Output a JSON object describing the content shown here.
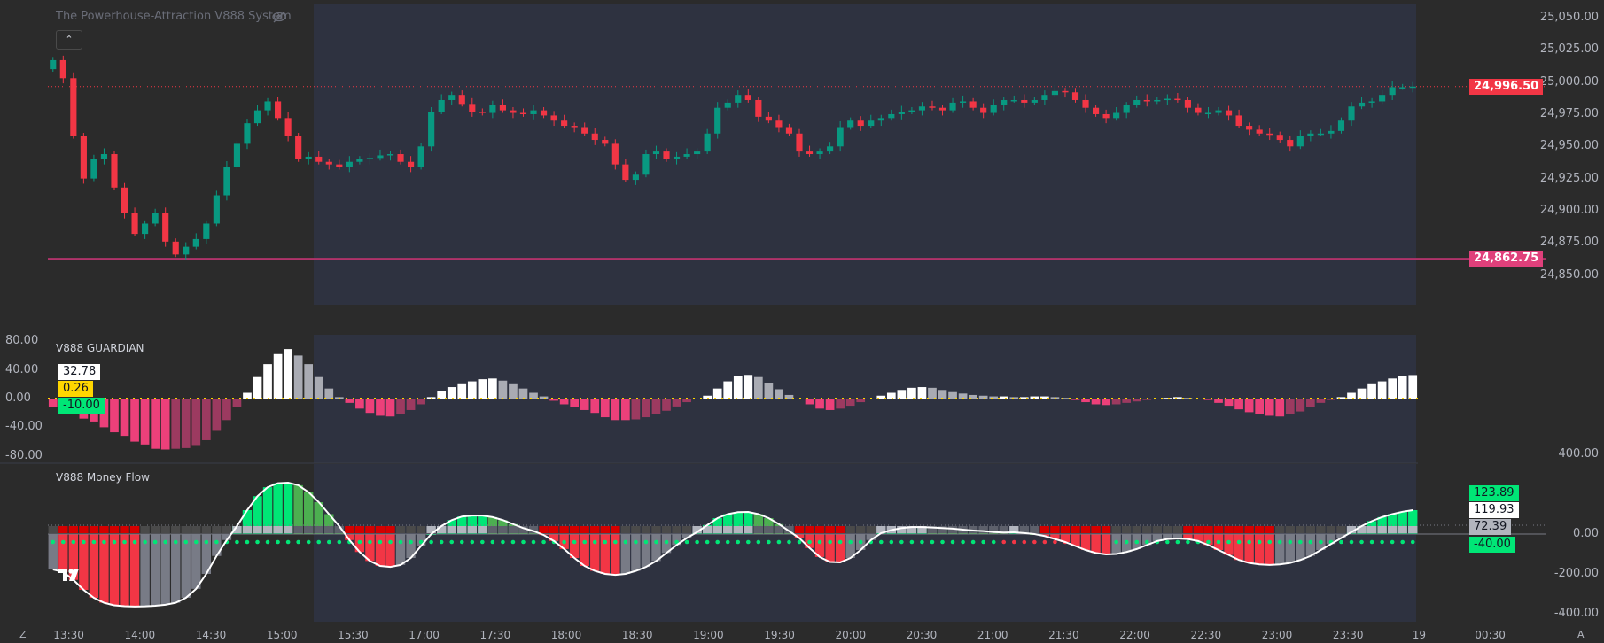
{
  "indicator_title": "The Powerhouse-Attraction V888 System",
  "icons": {
    "visibility": "eye-slash-icon",
    "collapse": "chevron-up-icon",
    "logo": "tradingview-logo"
  },
  "colors": {
    "up": "#089981",
    "down": "#f23645",
    "session_bg": "#2e3240",
    "bg": "#2b2b2b",
    "last_price": "#f23645",
    "support_line": "#e0407b",
    "green": "#00e676",
    "pink": "#ec407a",
    "white": "#ffffff"
  },
  "price_axis": {
    "ticks": [
      "25,050.00",
      "25,025.00",
      "25,000.00",
      "24,975.00",
      "24,950.00",
      "24,925.00",
      "24,900.00",
      "24,875.00",
      "24,850.00"
    ],
    "tick_values": [
      25050,
      25025,
      25000,
      24975,
      24950,
      24925,
      24900,
      24875,
      24850
    ],
    "last_price_label": "24,996.50",
    "last_price": 24996.5,
    "level_label": "24,862.75",
    "level": 24862.75
  },
  "guardian": {
    "title": "V888 GUARDIAN",
    "ticks": [
      "80.00",
      "40.00",
      "0.00",
      "-40.00",
      "-80.00"
    ],
    "tick_values": [
      80,
      40,
      0,
      -40,
      -80
    ],
    "badges": [
      {
        "text": "32.78",
        "color": "#ffffff"
      },
      {
        "text": "0.26",
        "color": "#ffd600"
      },
      {
        "text": "-10.00",
        "color": "#00e676"
      }
    ],
    "values": [
      -12,
      -18,
      -20,
      -28,
      -32,
      -40,
      -47,
      -52,
      -60,
      -64,
      -70,
      -71,
      -70,
      -69,
      -66,
      -58,
      -45,
      -30,
      -12,
      8,
      30,
      48,
      62,
      69,
      60,
      48,
      30,
      14,
      2,
      -6,
      -14,
      -20,
      -24,
      -25,
      -22,
      -16,
      -8,
      2,
      10,
      16,
      20,
      24,
      27,
      28,
      25,
      20,
      14,
      8,
      3,
      -3,
      -8,
      -12,
      -16,
      -20,
      -26,
      -30,
      -30,
      -29,
      -26,
      -22,
      -17,
      -11,
      -5,
      -1,
      4,
      14,
      24,
      31,
      33,
      30,
      22,
      13,
      5,
      0,
      -8,
      -14,
      -16,
      -14,
      -10,
      -5,
      0,
      4,
      8,
      12,
      15,
      16,
      15,
      12,
      9,
      7,
      5,
      4,
      3,
      3,
      2,
      2,
      3,
      3,
      2,
      1,
      -2,
      -5,
      -8,
      -9,
      -8,
      -6,
      -4,
      -2,
      0,
      1,
      2,
      1,
      0,
      -2,
      -6,
      -10,
      -15,
      -19,
      -22,
      -24,
      -25,
      -22,
      -18,
      -12,
      -6,
      -2,
      2,
      8,
      14,
      20,
      24,
      28,
      31,
      32.78
    ]
  },
  "money_flow": {
    "title": "V888 Money Flow",
    "ticks": [
      "400.00",
      "0.00",
      "-200.00",
      "-400.00"
    ],
    "tick_values": [
      400,
      0,
      -200,
      -400
    ],
    "badges": [
      {
        "text": "123.89",
        "color": "#00e676"
      },
      {
        "text": "119.93",
        "color": "#ffffff"
      },
      {
        "text": "72.39",
        "color": "#b2b5be"
      },
      {
        "text": "-40.00",
        "color": "#00e676"
      }
    ],
    "wave": [
      -178,
      -190,
      -230,
      -280,
      -320,
      -345,
      -358,
      -362,
      -364,
      -363,
      -360,
      -355,
      -345,
      -320,
      -275,
      -200,
      -110,
      -30,
      40,
      120,
      190,
      235,
      255,
      258,
      245,
      210,
      160,
      100,
      40,
      -30,
      -90,
      -135,
      -160,
      -165,
      -155,
      -120,
      -60,
      0,
      40,
      70,
      88,
      93,
      93,
      85,
      70,
      50,
      30,
      15,
      -5,
      -35,
      -75,
      -120,
      -160,
      -185,
      -200,
      -205,
      -200,
      -185,
      -165,
      -135,
      -95,
      -55,
      -20,
      10,
      45,
      80,
      100,
      110,
      111,
      100,
      80,
      50,
      15,
      -20,
      -70,
      -115,
      -140,
      -142,
      -120,
      -80,
      -30,
      5,
      20,
      30,
      35,
      35,
      33,
      30,
      27,
      22,
      18,
      15,
      10,
      8,
      9,
      5,
      0,
      -10,
      -25,
      -40,
      -60,
      -80,
      -95,
      -102,
      -100,
      -90,
      -75,
      -55,
      -35,
      -25,
      -22,
      -25,
      -35,
      -55,
      -80,
      -105,
      -130,
      -145,
      -152,
      -155,
      -152,
      -145,
      -130,
      -110,
      -80,
      -50,
      -20,
      10,
      40,
      65,
      85,
      100,
      112,
      120
    ],
    "dot_level": -40,
    "dots": "gggggggggggggggggggggggggggggggggggggggggggggggggggggggggggggggggggggggggggggggggggggggggggggrrrrrrrrrrrgggggggggggggggggggggggggggggg"
  },
  "chart_data": {
    "type": "candlestick",
    "closes": [
      25017,
      25003,
      24958,
      24925,
      24940,
      24944,
      24918,
      24898,
      24882,
      24890,
      24898,
      24876,
      24866,
      24872,
      24878,
      24890,
      24912,
      24934,
      24952,
      24968,
      24978,
      24985,
      24972,
      24958,
      24940,
      24942,
      24938,
      24936,
      24934,
      24938,
      24940,
      24941,
      24943,
      24944,
      24938,
      24934,
      24950,
      24977,
      24986,
      24990,
      24983,
      24977,
      24976,
      24982,
      24978,
      24976,
      24975,
      24978,
      24974,
      24970,
      24966,
      24965,
      24960,
      24955,
      24952,
      24936,
      24924,
      24928,
      24944,
      24946,
      24940,
      24942,
      24944,
      24946,
      24960,
      24980,
      24984,
      24990,
      24986,
      24973,
      24970,
      24965,
      24960,
      24946,
      24944,
      24946,
      24950,
      24965,
      24970,
      24966,
      24970,
      24972,
      24975,
      24977,
      24978,
      24981,
      24980,
      24978,
      24984,
      24985,
      24980,
      24976,
      24982,
      24986,
      24986,
      24984,
      24986,
      24990,
      24993,
      24992,
      24986,
      24980,
      24975,
      24972,
      24976,
      24982,
      24986,
      24985,
      24986,
      24987,
      24986,
      24980,
      24976,
      24976,
      24978,
      24974,
      24966,
      24963,
      24960,
      24959,
      24955,
      24950,
      24958,
      24960,
      24960,
      24962,
      24970,
      24981,
      24984,
      24985,
      24990,
      24996,
      24996,
      24996.5
    ],
    "ylim": [
      24840,
      25060
    ]
  },
  "time_axis": {
    "labels": [
      "13:30",
      "14:00",
      "14:30",
      "15:00",
      "15:30",
      "17:00",
      "17:30",
      "18:00",
      "18:30",
      "19:00",
      "19:30",
      "20:00",
      "20:30",
      "21:00",
      "21:30",
      "22:00",
      "22:30",
      "23:00",
      "23:30",
      "19",
      "00:30"
    ],
    "left_corner": "Z",
    "right_corner": "A"
  }
}
